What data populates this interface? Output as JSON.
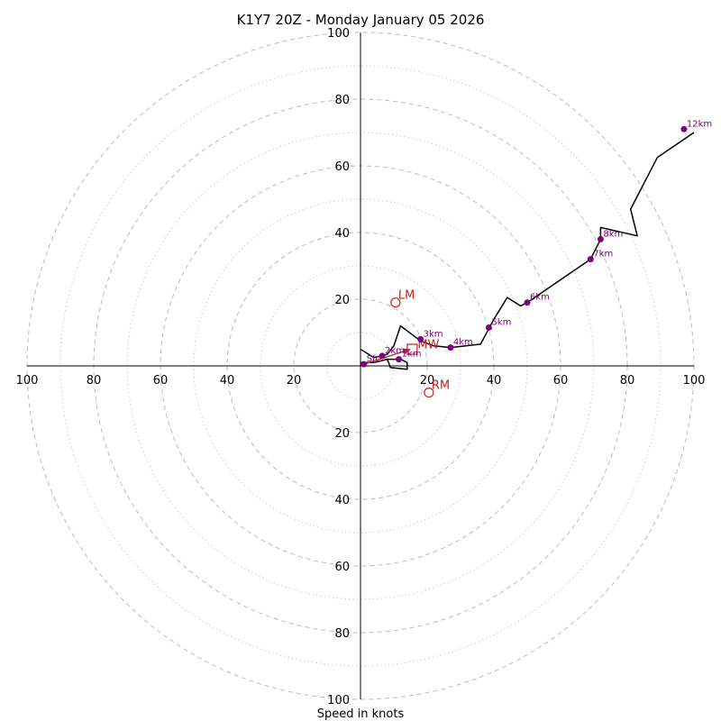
{
  "chart_data": {
    "type": "hodograph",
    "title": "K1Y7 20Z - Monday January 05 2026",
    "xlabel": "Speed in knots",
    "axis_range": [
      -100,
      100
    ],
    "tick_labels": {
      "left": [
        "100",
        "80",
        "60",
        "40",
        "20"
      ],
      "right": [
        "20",
        "40",
        "60",
        "80",
        "100"
      ],
      "up": [
        "20",
        "40",
        "60",
        "80",
        "100"
      ],
      "down": [
        "20",
        "40",
        "60",
        "80",
        "100"
      ]
    },
    "rings": {
      "major": [
        20,
        40,
        60,
        80,
        100
      ],
      "minor": [
        10,
        30,
        50,
        70,
        90
      ]
    },
    "wind_trace": [
      [
        0.0,
        5.0
      ],
      [
        4.0,
        2.5
      ],
      [
        8.0,
        3.5
      ],
      [
        10.0,
        6.0
      ],
      [
        12.0,
        12.0
      ],
      [
        14.0,
        10.5
      ],
      [
        16.0,
        9.0
      ],
      [
        18.0,
        7.5
      ],
      [
        22.0,
        6.0
      ],
      [
        27.0,
        5.5
      ],
      [
        36.0,
        6.5
      ],
      [
        40.0,
        14.0
      ],
      [
        44.0,
        20.5
      ],
      [
        48.0,
        18.0
      ],
      [
        50.0,
        19.0
      ],
      [
        69.0,
        32.0
      ],
      [
        72.0,
        38.0
      ],
      [
        72.0,
        41.5
      ],
      [
        83.0,
        39.0
      ],
      [
        81.0,
        47.0
      ],
      [
        89.0,
        62.5
      ],
      [
        100.0,
        70.0
      ]
    ],
    "lower_loop": [
      [
        0.0,
        1.0
      ],
      [
        4.0,
        1.0
      ],
      [
        8.0,
        2.0
      ],
      [
        12.0,
        2.0
      ],
      [
        14.0,
        1.0
      ],
      [
        14.0,
        -1.0
      ],
      [
        9.0,
        -0.5
      ],
      [
        8.0,
        2.0
      ]
    ],
    "height_markers": [
      {
        "label": "Sfc",
        "u": 1.0,
        "v": 0.5
      },
      {
        "label": "1km",
        "u": 11.5,
        "v": 2.0
      },
      {
        "label": "2km",
        "u": 6.5,
        "v": 3.0
      },
      {
        "label": "3km",
        "u": 18.0,
        "v": 8.0
      },
      {
        "label": "4km",
        "u": 27.0,
        "v": 5.5
      },
      {
        "label": "5km",
        "u": 38.5,
        "v": 11.5
      },
      {
        "label": "6km",
        "u": 50.0,
        "v": 19.0
      },
      {
        "label": "7km",
        "u": 69.0,
        "v": 32.0
      },
      {
        "label": "8km",
        "u": 72.0,
        "v": 38.0
      },
      {
        "label": "12km",
        "u": 97.0,
        "v": 71.0
      }
    ],
    "shear_vector": {
      "from": [
        1.0,
        0.5
      ],
      "to": [
        15.0,
        5.0
      ]
    },
    "storm_motions": [
      {
        "label": "LM",
        "u": 10.5,
        "v": 19.0,
        "shape": "circle"
      },
      {
        "label": "RM",
        "u": 20.5,
        "v": -8.0,
        "shape": "circle"
      },
      {
        "label": "MW",
        "u": 15.5,
        "v": 5.0,
        "shape": "square"
      }
    ],
    "colors": {
      "trace": "#000000",
      "markers": "#800080",
      "storm_motion": "#c81e1e",
      "grid": "#bbbbbb"
    }
  }
}
